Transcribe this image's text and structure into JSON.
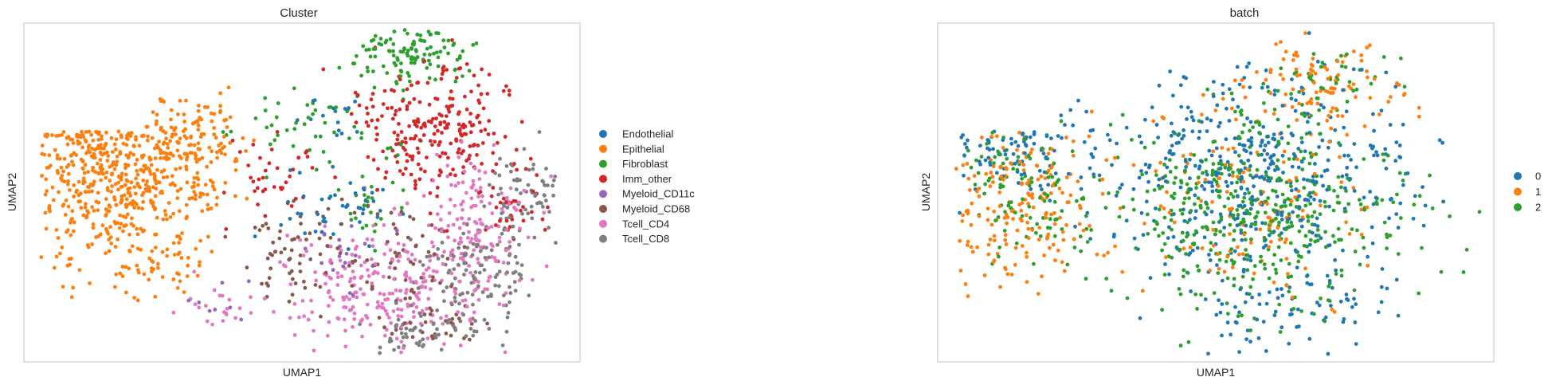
{
  "chart_data": [
    {
      "type": "scatter",
      "title": "Cluster",
      "xlabel": "UMAP1",
      "ylabel": "UMAP2",
      "grid": false,
      "ticks": false,
      "legend_placement": "right",
      "legend": [
        {
          "name": "Endothelial",
          "color": "#1f77b4"
        },
        {
          "name": "Epithelial",
          "color": "#ff7f0e"
        },
        {
          "name": "Fibroblast",
          "color": "#2ca02c"
        },
        {
          "name": "Imm_other",
          "color": "#d62728"
        },
        {
          "name": "Myeloid_CD11c",
          "color": "#9467bd"
        },
        {
          "name": "Myeloid_CD68",
          "color": "#8c564b"
        },
        {
          "name": "Tcell_CD4",
          "color": "#e377c2"
        },
        {
          "name": "Tcell_CD8",
          "color": "#7f7f7f"
        }
      ],
      "series": [
        {
          "name": "Epithelial",
          "regions": [
            [
              0.16,
              0.6,
              0.11,
              0.21,
              520
            ],
            [
              0.32,
              0.63,
              0.05,
              0.14,
              110
            ],
            [
              0.25,
              0.3,
              0.06,
              0.06,
              40
            ]
          ]
        },
        {
          "name": "Fibroblast",
          "regions": [
            [
              0.7,
              0.91,
              0.08,
              0.06,
              120
            ],
            [
              0.52,
              0.68,
              0.1,
              0.08,
              50
            ],
            [
              0.62,
              0.45,
              0.05,
              0.08,
              25
            ]
          ]
        },
        {
          "name": "Imm_other",
          "regions": [
            [
              0.74,
              0.7,
              0.1,
              0.13,
              240
            ],
            [
              0.45,
              0.55,
              0.08,
              0.08,
              40
            ],
            [
              0.88,
              0.45,
              0.05,
              0.08,
              30
            ]
          ]
        },
        {
          "name": "Endothelial",
          "regions": [
            [
              0.58,
              0.45,
              0.07,
              0.09,
              45
            ],
            [
              0.55,
              0.72,
              0.05,
              0.05,
              15
            ]
          ]
        },
        {
          "name": "Myeloid_CD11c",
          "regions": [
            [
              0.58,
              0.32,
              0.09,
              0.08,
              20
            ],
            [
              0.35,
              0.18,
              0.05,
              0.04,
              8
            ]
          ]
        },
        {
          "name": "Myeloid_CD68",
          "regions": [
            [
              0.5,
              0.3,
              0.07,
              0.1,
              70
            ],
            [
              0.68,
              0.34,
              0.06,
              0.1,
              50
            ],
            [
              0.72,
              0.1,
              0.07,
              0.04,
              30
            ]
          ]
        },
        {
          "name": "Tcell_CD4",
          "regions": [
            [
              0.64,
              0.22,
              0.12,
              0.12,
              240
            ],
            [
              0.81,
              0.4,
              0.06,
              0.14,
              150
            ],
            [
              0.35,
              0.16,
              0.05,
              0.04,
              20
            ]
          ]
        },
        {
          "name": "Tcell_CD8",
          "regions": [
            [
              0.82,
              0.25,
              0.07,
              0.12,
              130
            ],
            [
              0.9,
              0.5,
              0.04,
              0.08,
              60
            ],
            [
              0.7,
              0.08,
              0.06,
              0.04,
              50
            ]
          ]
        }
      ]
    },
    {
      "type": "scatter",
      "title": "batch",
      "xlabel": "UMAP1",
      "ylabel": "UMAP2",
      "grid": false,
      "ticks": false,
      "legend_placement": "right",
      "legend": [
        {
          "name": "0",
          "color": "#1f77b4"
        },
        {
          "name": "1",
          "color": "#ff7f0e"
        },
        {
          "name": "2",
          "color": "#2ca02c"
        }
      ],
      "series": [
        {
          "name": "0",
          "regions": [
            [
              0.58,
              0.55,
              0.18,
              0.21,
              440
            ],
            [
              0.15,
              0.66,
              0.09,
              0.1,
              90
            ],
            [
              0.62,
              0.15,
              0.12,
              0.08,
              80
            ]
          ]
        },
        {
          "name": "1",
          "regions": [
            [
              0.14,
              0.46,
              0.1,
              0.16,
              180
            ],
            [
              0.68,
              0.8,
              0.1,
              0.1,
              100
            ],
            [
              0.55,
              0.45,
              0.16,
              0.18,
              140
            ]
          ]
        },
        {
          "name": "2",
          "regions": [
            [
              0.56,
              0.45,
              0.19,
              0.21,
              480
            ],
            [
              0.16,
              0.52,
              0.08,
              0.15,
              90
            ],
            [
              0.7,
              0.84,
              0.08,
              0.06,
              40
            ]
          ]
        }
      ]
    }
  ]
}
